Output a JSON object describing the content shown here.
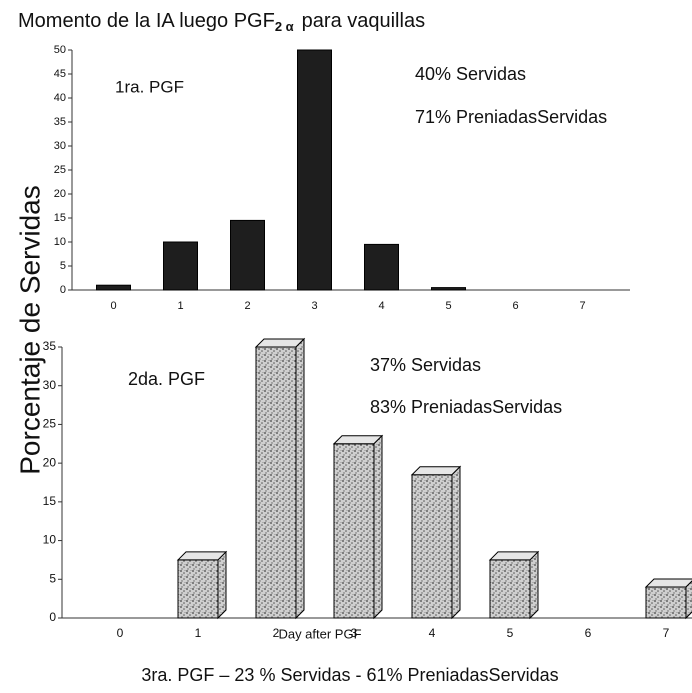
{
  "chart_data": [
    {
      "type": "bar",
      "title": {
        "main": "Momento de la IA luego PGF",
        "subscript": "2 α",
        "rest": "para vaquillas"
      },
      "ylabel": "Porcentaje de Servidas",
      "categories": [
        0,
        1,
        2,
        3,
        4,
        5,
        6,
        7
      ],
      "values": [
        1,
        10,
        14.5,
        50,
        9.5,
        0.5,
        null,
        null
      ],
      "color": "#1e1e1e",
      "ylim": [
        0,
        50
      ],
      "yticks": [
        0,
        5,
        10,
        15,
        20,
        25,
        30,
        35,
        40,
        45,
        50
      ],
      "annotations": [
        "1ra. PGF",
        "40% Servidas",
        "71% PreniadasServidas"
      ]
    },
    {
      "type": "bar3d",
      "categories": [
        0,
        1,
        2,
        3,
        4,
        5,
        6,
        7
      ],
      "values": [
        null,
        7.5,
        35,
        22.5,
        18.5,
        7.5,
        null,
        4
      ],
      "color": "#9a9a9a",
      "ylim": [
        0,
        35
      ],
      "yticks": [
        0,
        5,
        10,
        15,
        20,
        25,
        30,
        35
      ],
      "annotations": [
        "2da. PGF",
        "37% Servidas",
        "83% PreniadasServidas"
      ],
      "xlabel": "Day after PGF",
      "footnote": "3ra. PGF – 23 % Servidas  - 61% PreniadasServidas"
    }
  ]
}
